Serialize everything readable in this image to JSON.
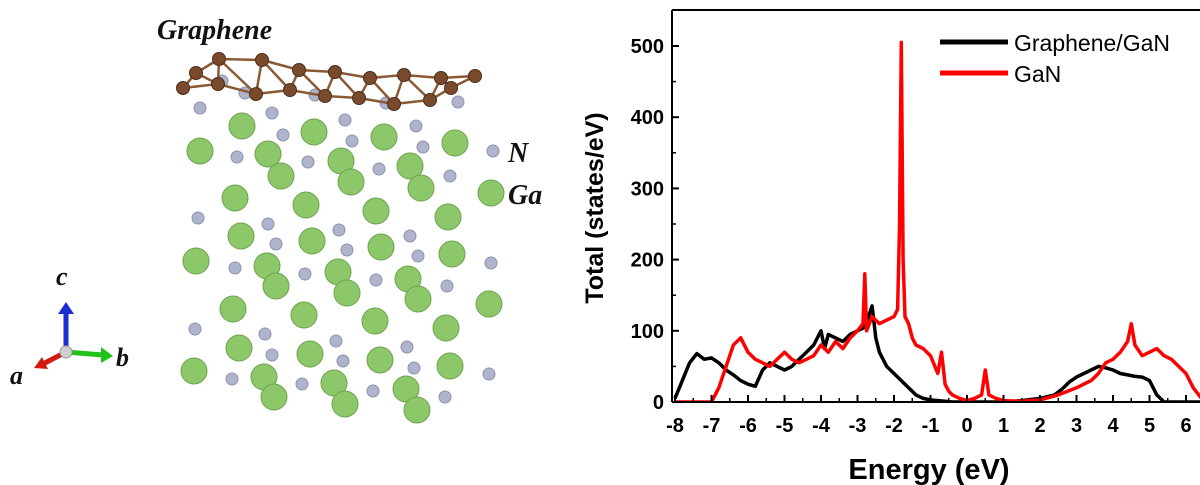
{
  "structure": {
    "label_graphene": "Graphene",
    "label_n": "N",
    "label_ga": "Ga",
    "axis_a": "a",
    "axis_b": "b",
    "axis_c": "c",
    "colors": {
      "carbon": "#7a4a2c",
      "bond": "#8a5a35",
      "gallium": "#8cc86a",
      "nitrogen": "#aeb4cc",
      "axis_a": "#d21a12",
      "axis_b": "#21c21a",
      "axis_c": "#1a2ed2"
    }
  },
  "chart_data": {
    "type": "line",
    "xlabel": "Energy (eV)",
    "ylabel": "Total (states/eV)",
    "xlim": [
      -8,
      6.5
    ],
    "ylim": [
      0,
      550
    ],
    "xticks": [
      -8,
      -7,
      -6,
      -5,
      -4,
      -3,
      -2,
      -1,
      0,
      1,
      2,
      3,
      4,
      5,
      6
    ],
    "yticks": [
      0,
      100,
      200,
      300,
      400,
      500
    ],
    "grid": false,
    "legend_position": "top-right",
    "series": [
      {
        "name": "Graphene/GaN",
        "color": "#000000",
        "x": [
          -8.0,
          -7.8,
          -7.6,
          -7.4,
          -7.2,
          -7.0,
          -6.8,
          -6.6,
          -6.4,
          -6.2,
          -6.0,
          -5.8,
          -5.6,
          -5.4,
          -5.2,
          -5.0,
          -4.8,
          -4.6,
          -4.4,
          -4.2,
          -4.0,
          -3.9,
          -3.8,
          -3.6,
          -3.4,
          -3.2,
          -3.0,
          -2.8,
          -2.6,
          -2.5,
          -2.4,
          -2.2,
          -2.0,
          -1.8,
          -1.6,
          -1.4,
          -1.2,
          -1.0,
          -0.8,
          -0.6,
          -0.4,
          -0.2,
          0.0,
          0.5,
          1.0,
          1.5,
          2.0,
          2.4,
          2.6,
          2.8,
          3.0,
          3.2,
          3.4,
          3.6,
          3.8,
          4.0,
          4.2,
          4.4,
          4.6,
          4.8,
          5.0,
          5.2,
          5.4,
          5.6,
          6.0,
          6.5
        ],
        "y": [
          5,
          30,
          55,
          68,
          60,
          62,
          55,
          45,
          38,
          30,
          25,
          22,
          45,
          55,
          50,
          45,
          50,
          60,
          70,
          80,
          100,
          75,
          95,
          90,
          85,
          95,
          100,
          105,
          135,
          90,
          70,
          50,
          40,
          30,
          20,
          10,
          5,
          3,
          2,
          1,
          0,
          0,
          0,
          0,
          0,
          2,
          5,
          10,
          18,
          28,
          35,
          40,
          45,
          50,
          48,
          45,
          40,
          38,
          36,
          35,
          30,
          10,
          0,
          0,
          0,
          0
        ]
      },
      {
        "name": "GaN",
        "color": "#ff0000",
        "x": [
          -8.0,
          -7.4,
          -7.0,
          -6.8,
          -6.6,
          -6.4,
          -6.2,
          -6.0,
          -5.8,
          -5.6,
          -5.4,
          -5.2,
          -5.0,
          -4.8,
          -4.6,
          -4.4,
          -4.2,
          -4.0,
          -3.8,
          -3.6,
          -3.4,
          -3.2,
          -3.0,
          -2.85,
          -2.8,
          -2.75,
          -2.6,
          -2.4,
          -2.2,
          -2.0,
          -1.9,
          -1.85,
          -1.8,
          -1.75,
          -1.7,
          -1.6,
          -1.5,
          -1.4,
          -1.2,
          -1.0,
          -0.8,
          -0.7,
          -0.6,
          -0.5,
          -0.4,
          -0.2,
          0.0,
          0.2,
          0.4,
          0.5,
          0.6,
          0.8,
          1.0,
          1.5,
          2.0,
          2.5,
          3.0,
          3.4,
          3.6,
          3.8,
          4.0,
          4.2,
          4.4,
          4.5,
          4.6,
          4.8,
          5.0,
          5.2,
          5.4,
          5.6,
          5.8,
          6.0,
          6.2,
          6.5
        ],
        "y": [
          0,
          0,
          0,
          20,
          50,
          80,
          90,
          70,
          60,
          55,
          50,
          60,
          70,
          60,
          55,
          60,
          65,
          80,
          70,
          85,
          75,
          90,
          100,
          110,
          180,
          100,
          120,
          110,
          115,
          120,
          130,
          245,
          505,
          200,
          120,
          110,
          90,
          80,
          75,
          65,
          40,
          70,
          25,
          15,
          10,
          5,
          2,
          5,
          10,
          45,
          10,
          5,
          2,
          1,
          3,
          10,
          20,
          30,
          40,
          55,
          60,
          70,
          85,
          110,
          80,
          65,
          70,
          75,
          65,
          60,
          50,
          40,
          20,
          0
        ]
      }
    ]
  }
}
